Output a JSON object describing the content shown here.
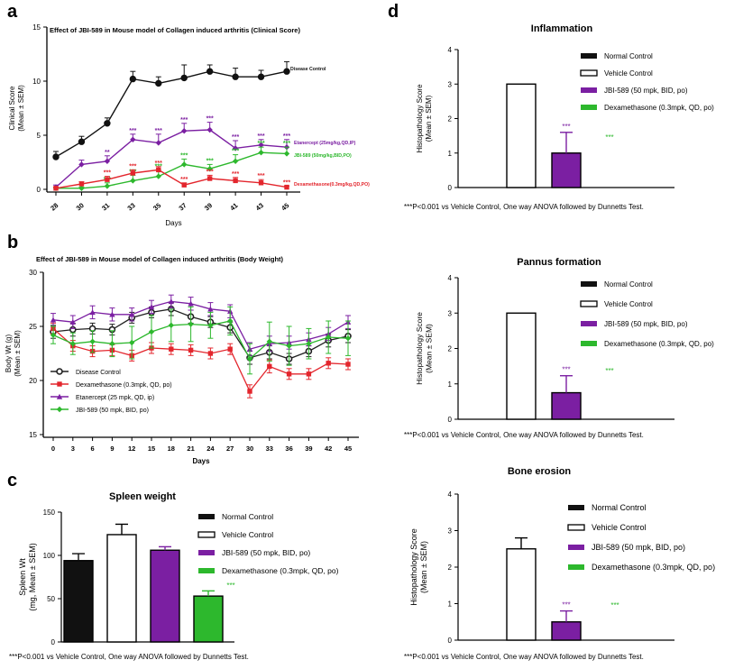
{
  "panel_labels": [
    "a",
    "b",
    "c",
    "d"
  ],
  "colors": {
    "black": "#111111",
    "purple": "#7B1FA2",
    "green": "#2DB82D",
    "red": "#E3262D"
  },
  "chart_data": [
    {
      "id": "a",
      "type": "line",
      "title": "Effect of JBI-589 in Mouse model of Collagen induced arthritis (Clinical Score)",
      "xlabel": "Days",
      "ylabel": "Clinical Score\n(Mean ± SEM)",
      "categories": [
        "28",
        "30",
        "31",
        "33",
        "35",
        "37",
        "39",
        "41",
        "43",
        "45"
      ],
      "ylim": [
        0,
        15
      ],
      "yticks": [
        0,
        5,
        10,
        15
      ],
      "series": [
        {
          "name": "Disease Control",
          "color": "#111111",
          "marker": "circle",
          "values": [
            3.0,
            4.4,
            6.1,
            10.2,
            9.8,
            10.3,
            10.9,
            10.4,
            10.4,
            10.9
          ],
          "err": [
            0.5,
            0.5,
            0.5,
            0.7,
            0.6,
            1.2,
            0.6,
            0.8,
            0.6,
            0.9
          ],
          "stars": [
            "",
            "",
            "",
            "",
            "",
            "",
            "",
            "",
            "",
            ""
          ]
        },
        {
          "name": "Etanercept (25mg/kg,QD,IP)",
          "color": "#7B1FA2",
          "marker": "diamond",
          "values": [
            0.2,
            2.3,
            2.6,
            4.6,
            4.3,
            5.4,
            5.5,
            3.8,
            4.1,
            3.9
          ],
          "err": [
            0.2,
            0.4,
            0.5,
            0.5,
            0.8,
            0.7,
            0.7,
            0.7,
            0.5,
            0.7
          ],
          "stars": [
            "",
            "",
            "**",
            "***",
            "***",
            "***",
            "***",
            "***",
            "***",
            "***"
          ]
        },
        {
          "name": "JBI-589 (50mg/kg,BID,PO)",
          "color": "#2DB82D",
          "marker": "diamond",
          "values": [
            0.1,
            0.1,
            0.3,
            0.8,
            1.2,
            2.3,
            1.9,
            2.6,
            3.4,
            3.3
          ],
          "err": [
            0.1,
            0.1,
            0.3,
            0.5,
            0.6,
            0.5,
            0.4,
            0.6,
            0.5,
            0.6
          ],
          "stars": [
            "",
            "",
            "***",
            "***",
            "***",
            "***",
            "***",
            "***",
            "***",
            "***"
          ]
        },
        {
          "name": "Dexamethasone(0.3mg/kg,QD,PO)",
          "color": "#E3262D",
          "marker": "square",
          "values": [
            0.1,
            0.5,
            0.9,
            1.5,
            1.8,
            0.4,
            1.0,
            0.8,
            0.6,
            0.2
          ],
          "err": [
            0.1,
            0.2,
            0.3,
            0.3,
            0.3,
            0.2,
            0.3,
            0.3,
            0.3,
            0.1
          ],
          "stars": [
            "",
            "",
            "***",
            "***",
            "***",
            "***",
            "***",
            "***",
            "***",
            "***"
          ]
        }
      ]
    },
    {
      "id": "b",
      "type": "line",
      "title": "Effect of JBI-589 in Mouse model of Collagen induced arthritis (Body Weight)",
      "xlabel": "Days",
      "ylabel": "Body Wt (g)\n(Mean ± SEM)",
      "categories": [
        "0",
        "3",
        "6",
        "9",
        "12",
        "15",
        "18",
        "21",
        "24",
        "27",
        "30",
        "33",
        "36",
        "39",
        "42",
        "45"
      ],
      "ylim": [
        15,
        30
      ],
      "yticks": [
        15,
        20,
        25,
        30
      ],
      "series": [
        {
          "name": "Disease Control",
          "color": "#222222",
          "marker": "circle",
          "values": [
            24.5,
            24.7,
            24.8,
            24.7,
            25.8,
            26.3,
            26.6,
            25.9,
            25.4,
            24.9,
            22.1,
            22.6,
            22.0,
            22.7,
            23.7,
            24.1
          ],
          "err": [
            0.6,
            0.6,
            0.5,
            0.5,
            0.5,
            0.5,
            0.6,
            0.6,
            0.5,
            0.5,
            0.6,
            0.6,
            0.5,
            0.5,
            0.6,
            0.6
          ]
        },
        {
          "name": "Dexamethasone (0.3mpk, QD, po)",
          "color": "#E3262D",
          "marker": "square",
          "values": [
            24.8,
            23.2,
            22.7,
            22.8,
            22.3,
            23.0,
            22.9,
            22.8,
            22.5,
            22.9,
            19.0,
            21.3,
            20.6,
            20.6,
            21.6,
            21.5
          ],
          "err": [
            0.5,
            0.5,
            0.5,
            0.5,
            0.5,
            0.5,
            0.5,
            0.5,
            0.5,
            0.5,
            0.6,
            0.6,
            0.5,
            0.5,
            0.5,
            0.5
          ]
        },
        {
          "name": "Etanercept (25 mpk, QD, ip)",
          "color": "#7B1FA2",
          "marker": "triangle",
          "values": [
            25.6,
            25.4,
            26.3,
            26.1,
            26.1,
            26.8,
            27.3,
            27.1,
            26.6,
            26.4,
            22.9,
            23.4,
            23.5,
            23.8,
            24.3,
            25.4
          ],
          "err": [
            0.6,
            0.6,
            0.6,
            0.6,
            0.6,
            0.6,
            0.6,
            0.6,
            0.6,
            0.6,
            0.6,
            0.7,
            0.6,
            0.6,
            0.6,
            0.6
          ]
        },
        {
          "name": "JBI-589 (50 mpk, BID, po)",
          "color": "#2DB82D",
          "marker": "diamond",
          "values": [
            24.2,
            23.4,
            23.6,
            23.4,
            23.5,
            24.5,
            25.1,
            25.2,
            25.1,
            25.5,
            22.0,
            23.6,
            23.2,
            23.4,
            24.0,
            23.9
          ],
          "err": [
            0.8,
            1.0,
            1.0,
            1.2,
            1.5,
            1.5,
            1.5,
            1.6,
            1.2,
            1.3,
            1.4,
            1.8,
            1.8,
            1.4,
            1.5,
            1.6
          ]
        }
      ]
    },
    {
      "id": "c",
      "type": "bar",
      "title": "Spleen weight",
      "ylabel": "Spleen Wt\n(mg, Mean ± SEM)",
      "ylim": [
        0,
        150
      ],
      "yticks": [
        0,
        50,
        100,
        150
      ],
      "categories": [
        "Normal Control",
        "Vehicle Control",
        "JBI-589 (50 mpk, BID, po)",
        "Dexamethasone (0.3mpk, QD, po)"
      ],
      "values": [
        94,
        124,
        106,
        53
      ],
      "err": [
        8,
        12,
        4,
        6
      ],
      "fills": [
        "#111111",
        "#ffffff",
        "#7B1FA2",
        "#2DB82D"
      ],
      "stars": [
        "",
        "",
        "",
        "***"
      ],
      "footnote": "***P<0.001 vs Vehicle Control, One way ANOVA followed by Dunnetts Test."
    },
    {
      "id": "d1",
      "type": "bar",
      "title": "Inflammation",
      "ylabel": "Histopathology Score\n(Mean ± SEM)",
      "ylim": [
        0,
        4
      ],
      "yticks": [
        0,
        1,
        2,
        3,
        4
      ],
      "categories": [
        "Normal Control",
        "Vehicle Control",
        "JBI-589 (50 mpk, BID, po)",
        "Dexamethasone (0.3mpk, QD, po)"
      ],
      "values": [
        0,
        3.0,
        1.0,
        0
      ],
      "err": [
        0,
        0,
        0.6,
        0
      ],
      "fills": [
        "#111111",
        "#ffffff",
        "#7B1FA2",
        "#2DB82D"
      ],
      "stars": [
        "",
        "",
        "***",
        "***"
      ],
      "footnote": "***P<0.001 vs Vehicle Control, One way ANOVA followed by Dunnetts Test."
    },
    {
      "id": "d2",
      "type": "bar",
      "title": "Pannus formation",
      "ylabel": "Histopathology Score\n(Mean ± SEM)",
      "ylim": [
        0,
        4
      ],
      "yticks": [
        0,
        1,
        2,
        3,
        4
      ],
      "categories": [
        "Normal Control",
        "Vehicle Control",
        "JBI-589 (50 mpk, BID, po)",
        "Dexamethasone (0.3mpk, QD, po)"
      ],
      "values": [
        0,
        3.0,
        0.75,
        0
      ],
      "err": [
        0,
        0,
        0.48,
        0
      ],
      "fills": [
        "#111111",
        "#ffffff",
        "#7B1FA2",
        "#2DB82D"
      ],
      "stars": [
        "",
        "",
        "***",
        "***"
      ],
      "footnote": "***P<0.001 vs Vehicle Control, One way ANOVA followed by Dunnetts Test."
    },
    {
      "id": "d3",
      "type": "bar",
      "title": "Bone erosion",
      "ylabel": "Histopathology Score\n(Mean ± SEM)",
      "ylim": [
        0,
        4
      ],
      "yticks": [
        0,
        1,
        2,
        3,
        4
      ],
      "categories": [
        "Normal Control",
        "Vehicle Control",
        "JBI-589 (50 mpk, BID, po)",
        "Dexamethasone (0.3mpk, QD, po)"
      ],
      "values": [
        0,
        2.5,
        0.5,
        0
      ],
      "err": [
        0,
        0.3,
        0.3,
        0
      ],
      "fills": [
        "#111111",
        "#ffffff",
        "#7B1FA2",
        "#2DB82D"
      ],
      "stars": [
        "",
        "",
        "***",
        "***"
      ],
      "footnote": "***P<0.001 vs Vehicle Control, One way ANOVA followed by Dunnetts Test."
    }
  ]
}
